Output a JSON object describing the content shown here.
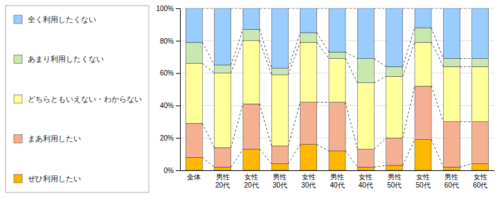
{
  "chart_data": {
    "type": "bar",
    "stacked": true,
    "grid": true,
    "legend": "left",
    "categories": [
      "全体",
      "男性\n20代",
      "女性\n20代",
      "男性\n30代",
      "女性\n30代",
      "男性\n40代",
      "女性\n40代",
      "男性\n50代",
      "女性\n50代",
      "男性\n60代",
      "女性\n60代"
    ],
    "series": [
      {
        "name": "ぜひ利用したい",
        "color": "#FFB800",
        "values": [
          8,
          2,
          13,
          4,
          16,
          12,
          2,
          3,
          19,
          2,
          4
        ]
      },
      {
        "name": "まあ利用したい",
        "color": "#F4B090",
        "values": [
          21,
          12,
          28,
          11,
          26,
          30,
          11,
          17,
          33,
          28,
          26
        ]
      },
      {
        "name": "どちらともいえない・わからない",
        "color": "#FFFF99",
        "values": [
          37,
          46,
          39,
          44,
          37,
          27,
          41,
          38,
          27,
          34,
          34
        ]
      },
      {
        "name": "あまり利用したくない",
        "color": "#C8E8B0",
        "values": [
          13,
          5,
          7,
          4,
          6,
          4,
          15,
          6,
          9,
          5,
          5
        ]
      },
      {
        "name": "全く利用したくない",
        "color": "#99CCFF",
        "values": [
          21,
          35,
          13,
          37,
          15,
          27,
          31,
          36,
          12,
          31,
          31
        ]
      }
    ],
    "ylim": [
      0,
      100
    ],
    "yticks": [
      {
        "value": 0,
        "label": "0%"
      },
      {
        "value": 20,
        "label": "20%"
      },
      {
        "value": 40,
        "label": "40%"
      },
      {
        "value": 60,
        "label": "60%"
      },
      {
        "value": 80,
        "label": "80%"
      },
      {
        "value": 100,
        "label": "100%"
      }
    ]
  }
}
